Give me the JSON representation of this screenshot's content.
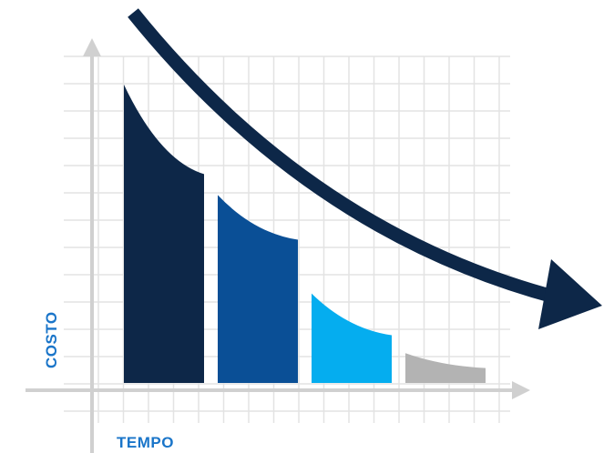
{
  "chart_data": {
    "type": "bar",
    "title": "",
    "xlabel": "TEMPO",
    "ylabel": "COSTO",
    "categories": [
      "",
      "",
      "",
      ""
    ],
    "values": [
      100,
      63,
      30,
      10
    ],
    "end_values": [
      70,
      48,
      16,
      5
    ],
    "ylim": [
      0,
      100
    ],
    "grid": true,
    "legend": "none",
    "trend_arrow": "decreasing",
    "colors": {
      "bars": [
        "#0d2748",
        "#0a4f96",
        "#05adef",
        "#b3b3b3"
      ],
      "arrow": "#0d2748",
      "label": "#1a75c9",
      "grid": "#e3e3e3",
      "axis": "#d0d0d0"
    }
  }
}
